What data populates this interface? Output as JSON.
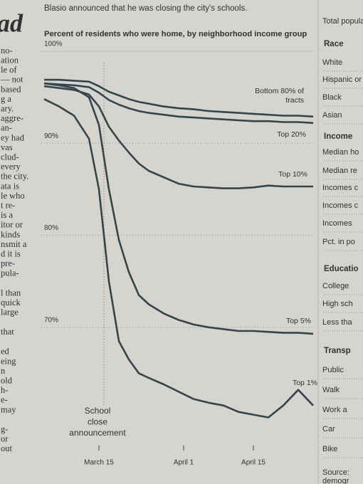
{
  "header": {
    "fragment": "ad",
    "text": "Blasio announced that he was closing the city's schools."
  },
  "left_column": [
    [
      "no-",
      "ation",
      "le of",
      "— not",
      "based",
      "g a",
      "ary.",
      "aggre-",
      "an-",
      "ey had",
      "vas",
      "clud-",
      "every",
      "the city.",
      "ata is",
      "le who",
      "t re-",
      "is a",
      "itor or",
      "kinds",
      "nsmit a",
      "d it is",
      "pre-",
      "pula-"
    ],
    [
      "l than",
      "quick",
      "large"
    ],
    [
      "that"
    ],
    [
      "ed",
      "eing",
      "n",
      "old",
      "h-",
      "e-",
      "may"
    ],
    [
      "g-",
      "or",
      "out"
    ]
  ],
  "right_column": [
    {
      "text": "Total popula"
    },
    {
      "text": "Race",
      "heading": true
    },
    {
      "text": "White"
    },
    {
      "text": "Hispanic or"
    },
    {
      "text": "Black"
    },
    {
      "text": "Asian"
    },
    {
      "text": "Income",
      "heading": true
    },
    {
      "text": "Median ho"
    },
    {
      "text": "Median re"
    },
    {
      "text": "Incomes c"
    },
    {
      "text": "Incomes c"
    },
    {
      "text": "Incomes"
    },
    {
      "text": "Pct. in po"
    },
    {
      "text": "Educatio",
      "heading": true
    },
    {
      "text": "College"
    },
    {
      "text": "High sch"
    },
    {
      "text": "Less tha"
    },
    {
      "text": "Transp",
      "heading": true
    },
    {
      "text": "Public"
    },
    {
      "text": "Walk"
    },
    {
      "text": "Work a"
    },
    {
      "text": "Car"
    },
    {
      "text": "Bike"
    },
    {
      "text": "Source:"
    },
    {
      "text": "demogr"
    }
  ],
  "chart_data": {
    "type": "line",
    "title": "Percent of residents who were home, by neighborhood income group",
    "x": [
      "03-04",
      "03-07",
      "03-10",
      "03-13",
      "03-15",
      "03-17",
      "03-19",
      "03-21",
      "03-23",
      "03-25",
      "03-28",
      "03-31",
      "04-03",
      "04-06",
      "04-09",
      "04-12",
      "04-15",
      "04-18",
      "04-21",
      "04-24",
      "04-27"
    ],
    "xlim": [
      "03-04",
      "04-27"
    ],
    "xticks": [
      {
        "value": "03-15",
        "label": "March 15"
      },
      {
        "value": "04-01",
        "label": "April 1"
      },
      {
        "value": "04-15",
        "label": "April 15"
      }
    ],
    "ylim": [
      59,
      100
    ],
    "yticks": [
      {
        "value": 100,
        "label": "100%"
      },
      {
        "value": 90,
        "label": "90%"
      },
      {
        "value": 80,
        "label": "80%"
      },
      {
        "value": 70,
        "label": "70%"
      }
    ],
    "grid": true,
    "color": "#34454b",
    "annotation": {
      "x": "03-16",
      "lines": [
        "School",
        "close",
        "announcement"
      ]
    },
    "series": [
      {
        "name": "Bottom 80% of tracts",
        "values": [
          96.9,
          96.9,
          96.8,
          96.7,
          96.2,
          95.6,
          95.2,
          94.8,
          94.5,
          94.3,
          94.0,
          93.8,
          93.7,
          93.5,
          93.4,
          93.3,
          93.2,
          93.1,
          93.0,
          93.0,
          92.9
        ]
      },
      {
        "name": "Top 20%",
        "values": [
          96.5,
          96.4,
          96.3,
          96.1,
          95.5,
          94.7,
          94.2,
          93.8,
          93.5,
          93.3,
          93.1,
          92.9,
          92.8,
          92.7,
          92.6,
          92.5,
          92.4,
          92.4,
          92.3,
          92.3,
          92.2
        ]
      },
      {
        "name": "Top 10%",
        "values": [
          96.2,
          96.0,
          95.8,
          95.3,
          94.0,
          91.8,
          90.3,
          89.0,
          87.8,
          87.0,
          86.3,
          85.6,
          85.3,
          85.2,
          85.1,
          85.1,
          85.2,
          85.4,
          85.3,
          85.3,
          85.3
        ]
      },
      {
        "name": "Top 5%",
        "values": [
          96.5,
          96.3,
          96.0,
          95.0,
          92.0,
          85.0,
          79.5,
          76.0,
          73.5,
          72.5,
          71.5,
          70.8,
          70.3,
          70.0,
          69.8,
          69.6,
          69.6,
          69.5,
          69.4,
          69.4,
          69.3
        ]
      },
      {
        "name": "Top 1%",
        "values": [
          94.8,
          94.0,
          93.0,
          90.5,
          85.0,
          75.0,
          68.5,
          66.5,
          65.0,
          64.5,
          63.8,
          63.0,
          62.2,
          61.8,
          61.5,
          60.8,
          60.5,
          60.2,
          61.5,
          63.2,
          61.5
        ]
      }
    ]
  }
}
